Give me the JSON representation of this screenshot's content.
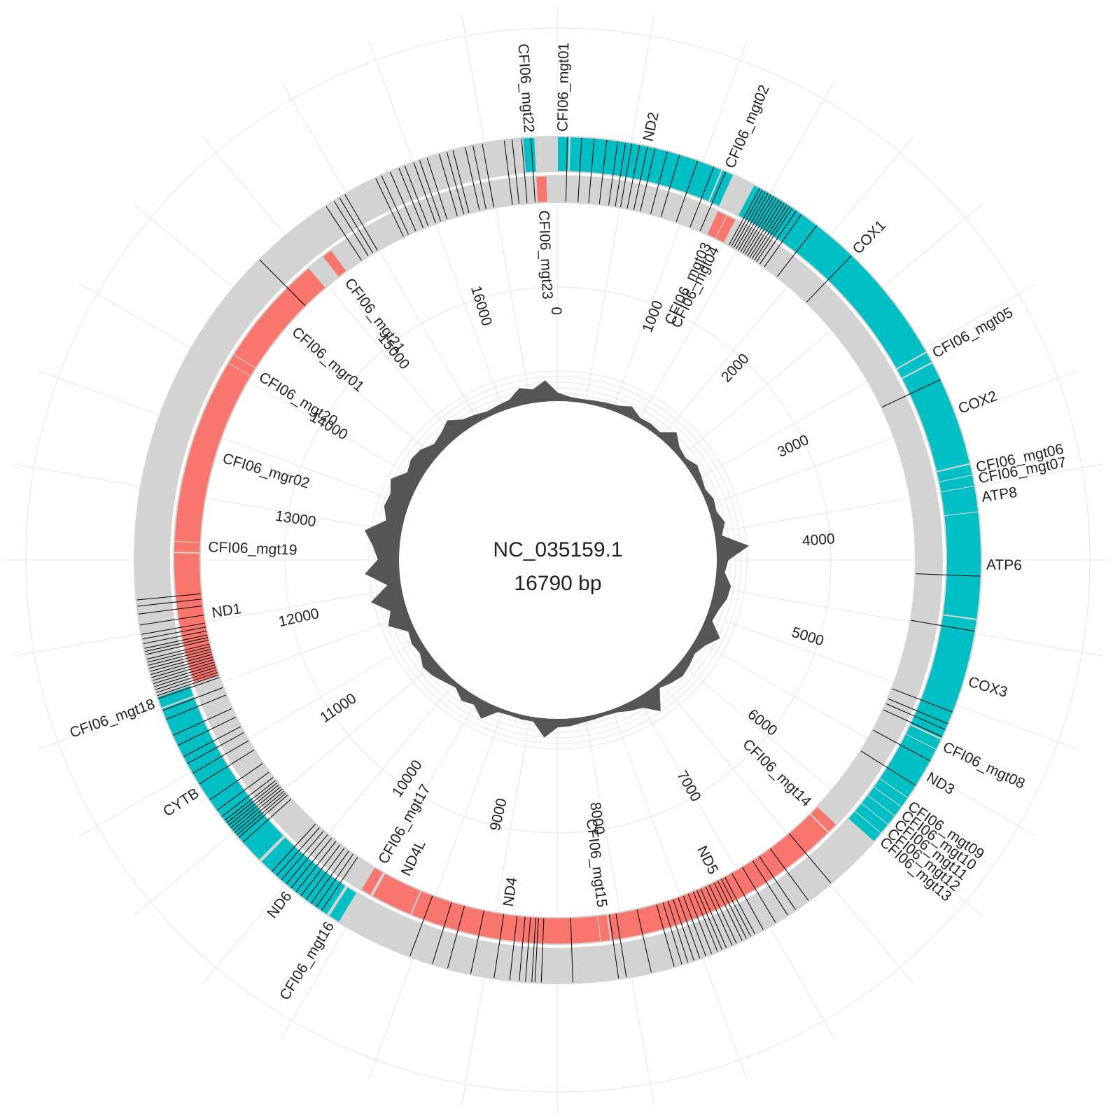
{
  "map": {
    "sequence_id": "NC_035159.1",
    "length_label": "16790 bp",
    "total_length": 16790,
    "colors": {
      "background_ring": "#d3d3d3",
      "forward_feature": "#00bfc4",
      "reverse_feature": "#f8766d",
      "variant_tick": "#000000",
      "gc_profile": "#555555",
      "radial_grid": "#e4e4e4"
    }
  },
  "scale": {
    "ticks": [
      0,
      1000,
      2000,
      3000,
      4000,
      5000,
      6000,
      7000,
      8000,
      9000,
      10000,
      11000,
      12000,
      13000,
      14000,
      15000,
      16000
    ],
    "labels": [
      "0",
      "1000",
      "2000",
      "3000",
      "4000",
      "5000",
      "6000",
      "7000",
      "8000",
      "9000",
      "10000",
      "11000",
      "12000",
      "13000",
      "14000",
      "15000",
      "16000"
    ]
  },
  "features": [
    {
      "label": "CFI06_mgt01",
      "start": 0,
      "end": 70,
      "strand": "forward"
    },
    {
      "label": "ND2",
      "start": 80,
      "end": 1060,
      "strand": "forward"
    },
    {
      "label": "CFI06_mgt02",
      "start": 1070,
      "end": 1140,
      "strand": "forward"
    },
    {
      "label": "CFI06_mgt03",
      "start": 1150,
      "end": 1215,
      "strand": "reverse"
    },
    {
      "label": "CFI06_mgt04",
      "start": 1220,
      "end": 1285,
      "strand": "reverse"
    },
    {
      "label": "COX1",
      "start": 1290,
      "end": 2820,
      "strand": "forward"
    },
    {
      "label": "CFI06_mgt05",
      "start": 2830,
      "end": 2895,
      "strand": "forward"
    },
    {
      "label": "COX2",
      "start": 2905,
      "end": 3580,
      "strand": "forward"
    },
    {
      "label": "CFI06_mgt06",
      "start": 3590,
      "end": 3655,
      "strand": "forward"
    },
    {
      "label": "CFI06_mgt07",
      "start": 3660,
      "end": 3725,
      "strand": "forward"
    },
    {
      "label": "ATP8",
      "start": 3730,
      "end": 3890,
      "strand": "forward"
    },
    {
      "label": "ATP6",
      "start": 3895,
      "end": 4570,
      "strand": "forward"
    },
    {
      "label": "COX3",
      "start": 4580,
      "end": 5360,
      "strand": "forward"
    },
    {
      "label": "CFI06_mgt08",
      "start": 5370,
      "end": 5435,
      "strand": "forward"
    },
    {
      "label": "ND3",
      "start": 5440,
      "end": 5790,
      "strand": "forward"
    },
    {
      "label": "CFI06_mgt09",
      "start": 5795,
      "end": 5860,
      "strand": "forward"
    },
    {
      "label": "CFI06_mgt10",
      "start": 5865,
      "end": 5930,
      "strand": "forward"
    },
    {
      "label": "CFI06_mgt11",
      "start": 5935,
      "end": 6000,
      "strand": "forward"
    },
    {
      "label": "CFI06_mgt12",
      "start": 6005,
      "end": 6070,
      "strand": "forward"
    },
    {
      "label": "CFI06_mgt13",
      "start": 6075,
      "end": 6140,
      "strand": "forward"
    },
    {
      "label": "CFI06_mgt14",
      "start": 6230,
      "end": 6300,
      "strand": "reverse"
    },
    {
      "label": "ND5",
      "start": 6310,
      "end": 8020,
      "strand": "reverse"
    },
    {
      "label": "CFI06_mgt15",
      "start": 8030,
      "end": 8095,
      "strand": "reverse"
    },
    {
      "label": "ND4",
      "start": 8100,
      "end": 9440,
      "strand": "reverse"
    },
    {
      "label": "ND4L",
      "start": 9450,
      "end": 9740,
      "strand": "reverse"
    },
    {
      "label": "CFI06_mgt17",
      "start": 9760,
      "end": 9830,
      "strand": "reverse"
    },
    {
      "label": "CFI06_mgt16",
      "start": 9850,
      "end": 9920,
      "strand": "forward"
    },
    {
      "label": "ND6",
      "start": 9940,
      "end": 10470,
      "strand": "forward"
    },
    {
      "label": "CYTB",
      "start": 10490,
      "end": 11630,
      "strand": "forward"
    },
    {
      "label": "CFI06_mgt18",
      "start": 11640,
      "end": 11710,
      "strand": "forward"
    },
    {
      "label": "ND1",
      "start": 11720,
      "end": 12640,
      "strand": "reverse"
    },
    {
      "label": "CFI06_mgt19",
      "start": 12650,
      "end": 12720,
      "strand": "reverse"
    },
    {
      "label": "CFI06_mgr02",
      "start": 12725,
      "end": 14030,
      "strand": "reverse"
    },
    {
      "label": "CFI06_mgt20",
      "start": 14035,
      "end": 14100,
      "strand": "reverse"
    },
    {
      "label": "CFI06_mgr01",
      "start": 14105,
      "end": 14900,
      "strand": "reverse"
    },
    {
      "label": "CFI06_mgt21",
      "start": 15030,
      "end": 15100,
      "strand": "reverse"
    },
    {
      "label": "CFI06_mgt22",
      "start": 16570,
      "end": 16640,
      "strand": "forward"
    },
    {
      "label": "CFI06_mgt23",
      "start": 16640,
      "end": 16710,
      "strand": "reverse"
    }
  ],
  "variants": [
    60,
    150,
    230,
    310,
    380,
    430,
    470,
    520,
    570,
    620,
    700,
    780,
    900,
    1010,
    1090,
    1330,
    1350,
    1370,
    1390,
    1410,
    1430,
    1450,
    1470,
    1490,
    1510,
    1530,
    1550,
    1570,
    1600,
    1640,
    1760,
    2050,
    3020,
    4300,
    4650,
    5180,
    5260,
    5300,
    5350,
    5520,
    5700,
    6520,
    6700,
    6800,
    6860,
    6950,
    7040,
    7100,
    7130,
    7160,
    7190,
    7230,
    7260,
    7300,
    7330,
    7360,
    7400,
    7440,
    7480,
    7520,
    7560,
    7600,
    7650,
    7800,
    7960,
    8010,
    8300,
    8500,
    8540,
    8560,
    8600,
    8640,
    8700,
    8800,
    8950,
    9100,
    9200,
    9350,
    9980,
    10020,
    10060,
    10100,
    10140,
    10180,
    10220,
    10260,
    10300,
    10340,
    10380,
    10640,
    10680,
    10700,
    10720,
    10740,
    10760,
    10780,
    10800,
    10820,
    10850,
    10900,
    10980,
    11100,
    11180,
    11250,
    11300,
    11380,
    11450,
    11560,
    11620,
    11700,
    11720,
    11740,
    11760,
    11780,
    11800,
    11820,
    11840,
    11860,
    11880,
    11900,
    11920,
    11940,
    11960,
    11990,
    12010,
    12030,
    12060,
    12090,
    12120,
    12180,
    12250,
    12300,
    12340,
    14700,
    15240,
    15300,
    15340,
    15380,
    15600,
    15640,
    15700,
    15760,
    15800,
    15860,
    15900,
    15950,
    16030,
    16080,
    16120,
    16200,
    16250,
    16310,
    16450,
    16500,
    16560,
    16620
  ],
  "coverage": {
    "positions": [
      0,
      200,
      400,
      600,
      800,
      1000,
      1200,
      1400,
      1600,
      1800,
      2000,
      2200,
      2400,
      2600,
      2800,
      3000,
      3200,
      3400,
      3600,
      3800,
      4000,
      4200,
      4400,
      4600,
      4800,
      5000,
      5200,
      5400,
      5600,
      5800,
      6000,
      6200,
      6400,
      6600,
      6800,
      7000,
      7200,
      7400,
      7600,
      7800,
      8000,
      8200,
      8400,
      8600,
      8800,
      9000,
      9200,
      9400,
      9600,
      9800,
      10000,
      10200,
      10400,
      10600,
      10800,
      11000,
      11200,
      11400,
      11600,
      11800,
      12000,
      12200,
      12400,
      12600,
      12800,
      13000,
      13200,
      13400,
      13600,
      13800,
      14000,
      14200,
      14400,
      14600,
      14800,
      15000,
      15200,
      15400,
      15600,
      15800,
      16000,
      16200,
      16400,
      16600
    ],
    "values": [
      0.22,
      0.12,
      0.1,
      0.12,
      0.15,
      0.18,
      0.3,
      0.14,
      0.16,
      0.12,
      0.4,
      0.18,
      0.12,
      0.25,
      0.18,
      0.12,
      0.22,
      0.18,
      0.32,
      0.18,
      0.85,
      0.3,
      0.22,
      0.42,
      0.38,
      0.25,
      0.18,
      0.55,
      0.3,
      0.18,
      0.25,
      0.3,
      0.22,
      0.12,
      0.62,
      0.3,
      0.22,
      0.12,
      0.1,
      0.12,
      0.15,
      0.2,
      0.22,
      0.5,
      0.12,
      0.12,
      0.1,
      0.12,
      0.45,
      0.22,
      0.3,
      0.12,
      0.2,
      0.3,
      0.35,
      0.2,
      0.25,
      0.18,
      0.6,
      0.42,
      0.85,
      0.35,
      0.9,
      0.55,
      0.7,
      0.95,
      0.45,
      0.6,
      0.55,
      0.7,
      0.4,
      0.5,
      0.45,
      0.28,
      0.35,
      0.5,
      0.28,
      0.22,
      0.15,
      0.18,
      0.22,
      0.45,
      0.35,
      0.55
    ],
    "max_value": 1.0
  }
}
